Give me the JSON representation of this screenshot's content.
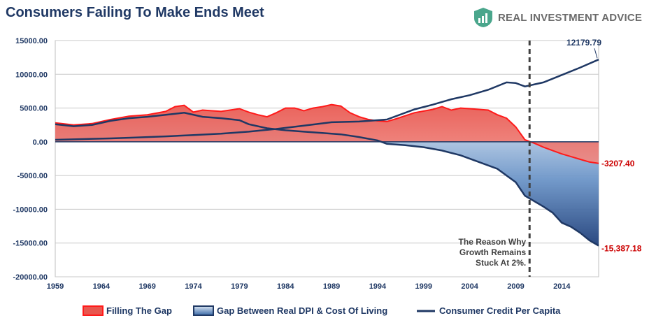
{
  "header": {
    "title": "Consumers Failing To Make Ends Meet",
    "brand": "REAL INVESTMENT ADVICE"
  },
  "colors": {
    "filling_gap": "#e8564e",
    "gap_dpi": "#3a6aa8",
    "credit_line": "#1f3864",
    "negative_label": "#cc0000"
  },
  "chart_data": {
    "type": "area",
    "title": "Consumers Failing To Make Ends Meet",
    "xlabel": "",
    "ylabel": "",
    "xlim": [
      1959,
      2018
    ],
    "ylim": [
      -20000,
      15000
    ],
    "x_ticks": [
      "1959",
      "1964",
      "1969",
      "1974",
      "1979",
      "1984",
      "1989",
      "1994",
      "1999",
      "2004",
      "2009",
      "2014"
    ],
    "y_ticks": [
      "15000.00",
      "10000.00",
      "5000.00",
      "0.00",
      "-5000.00",
      "-10000.00",
      "-15000.00",
      "-20000.00"
    ],
    "grid": true,
    "legend_position": "bottom",
    "series": [
      {
        "name": "Filling The Gap",
        "style": "area",
        "points": [
          [
            1959,
            2800
          ],
          [
            1961,
            2500
          ],
          [
            1963,
            2700
          ],
          [
            1965,
            3300
          ],
          [
            1967,
            3800
          ],
          [
            1969,
            4000
          ],
          [
            1971,
            4500
          ],
          [
            1972,
            5200
          ],
          [
            1973,
            5400
          ],
          [
            1974,
            4400
          ],
          [
            1975,
            4700
          ],
          [
            1977,
            4500
          ],
          [
            1979,
            4900
          ],
          [
            1980,
            4400
          ],
          [
            1981,
            4000
          ],
          [
            1982,
            3700
          ],
          [
            1983,
            4300
          ],
          [
            1984,
            5000
          ],
          [
            1985,
            5000
          ],
          [
            1986,
            4600
          ],
          [
            1987,
            5000
          ],
          [
            1988,
            5200
          ],
          [
            1989,
            5500
          ],
          [
            1990,
            5300
          ],
          [
            1991,
            4300
          ],
          [
            1992,
            3700
          ],
          [
            1993,
            3300
          ],
          [
            1994,
            3100
          ],
          [
            1995,
            3000
          ],
          [
            1996,
            3400
          ],
          [
            1998,
            4300
          ],
          [
            2000,
            4800
          ],
          [
            2001,
            5200
          ],
          [
            2002,
            4700
          ],
          [
            2003,
            5000
          ],
          [
            2004,
            4900
          ],
          [
            2006,
            4700
          ],
          [
            2007,
            4000
          ],
          [
            2008,
            3500
          ],
          [
            2009,
            2200
          ],
          [
            2010,
            300
          ],
          [
            2011,
            -200
          ],
          [
            2012,
            -800
          ],
          [
            2013,
            -1300
          ],
          [
            2014,
            -1800
          ],
          [
            2015,
            -2200
          ],
          [
            2016,
            -2600
          ],
          [
            2017,
            -3000
          ],
          [
            2018,
            -3207.4
          ]
        ]
      },
      {
        "name": "Gap Between Real DPI & Cost Of Living",
        "style": "area",
        "points": [
          [
            1959,
            2600
          ],
          [
            1961,
            2300
          ],
          [
            1963,
            2500
          ],
          [
            1965,
            3100
          ],
          [
            1967,
            3500
          ],
          [
            1969,
            3700
          ],
          [
            1971,
            4000
          ],
          [
            1973,
            4300
          ],
          [
            1975,
            3700
          ],
          [
            1977,
            3500
          ],
          [
            1979,
            3200
          ],
          [
            1980,
            2600
          ],
          [
            1982,
            2000
          ],
          [
            1984,
            1700
          ],
          [
            1986,
            1500
          ],
          [
            1988,
            1300
          ],
          [
            1990,
            1100
          ],
          [
            1992,
            700
          ],
          [
            1994,
            200
          ],
          [
            1995,
            -300
          ],
          [
            1997,
            -500
          ],
          [
            1999,
            -800
          ],
          [
            2001,
            -1300
          ],
          [
            2003,
            -2000
          ],
          [
            2005,
            -3000
          ],
          [
            2007,
            -4000
          ],
          [
            2009,
            -6000
          ],
          [
            2010,
            -8000
          ],
          [
            2011,
            -8800
          ],
          [
            2012,
            -9600
          ],
          [
            2013,
            -10500
          ],
          [
            2014,
            -12000
          ],
          [
            2015,
            -12600
          ],
          [
            2016,
            -13500
          ],
          [
            2017,
            -14600
          ],
          [
            2018,
            -15387.18
          ]
        ]
      },
      {
        "name": "Consumer Credit Per Capita",
        "style": "line",
        "points": [
          [
            1959,
            300
          ],
          [
            1962,
            400
          ],
          [
            1965,
            500
          ],
          [
            1968,
            650
          ],
          [
            1971,
            800
          ],
          [
            1974,
            1000
          ],
          [
            1977,
            1200
          ],
          [
            1980,
            1500
          ],
          [
            1983,
            1900
          ],
          [
            1986,
            2400
          ],
          [
            1989,
            2900
          ],
          [
            1992,
            3000
          ],
          [
            1995,
            3300
          ],
          [
            1998,
            4800
          ],
          [
            2000,
            5500
          ],
          [
            2002,
            6300
          ],
          [
            2004,
            6900
          ],
          [
            2006,
            7700
          ],
          [
            2008,
            8800
          ],
          [
            2009,
            8700
          ],
          [
            2010,
            8200
          ],
          [
            2012,
            8800
          ],
          [
            2014,
            9900
          ],
          [
            2016,
            11000
          ],
          [
            2018,
            12179.79
          ]
        ]
      }
    ],
    "data_labels": [
      {
        "series": "Consumer Credit Per Capita",
        "x": 2018,
        "y": 12179.79,
        "text": "12179.79",
        "color": "#1f3864"
      },
      {
        "series": "Filling The Gap",
        "x": 2018,
        "y": -3207.4,
        "text": "-3207.40",
        "color": "#cc0000"
      },
      {
        "series": "Gap Between Real DPI & Cost Of Living",
        "x": 2018,
        "y": -15387.18,
        "text": "-15,387.18",
        "color": "#cc0000"
      }
    ],
    "annotation": {
      "lines": [
        "The Reason Why",
        "Growth Remains",
        "Stuck At 2%."
      ],
      "vline_x": 2010.5
    }
  }
}
